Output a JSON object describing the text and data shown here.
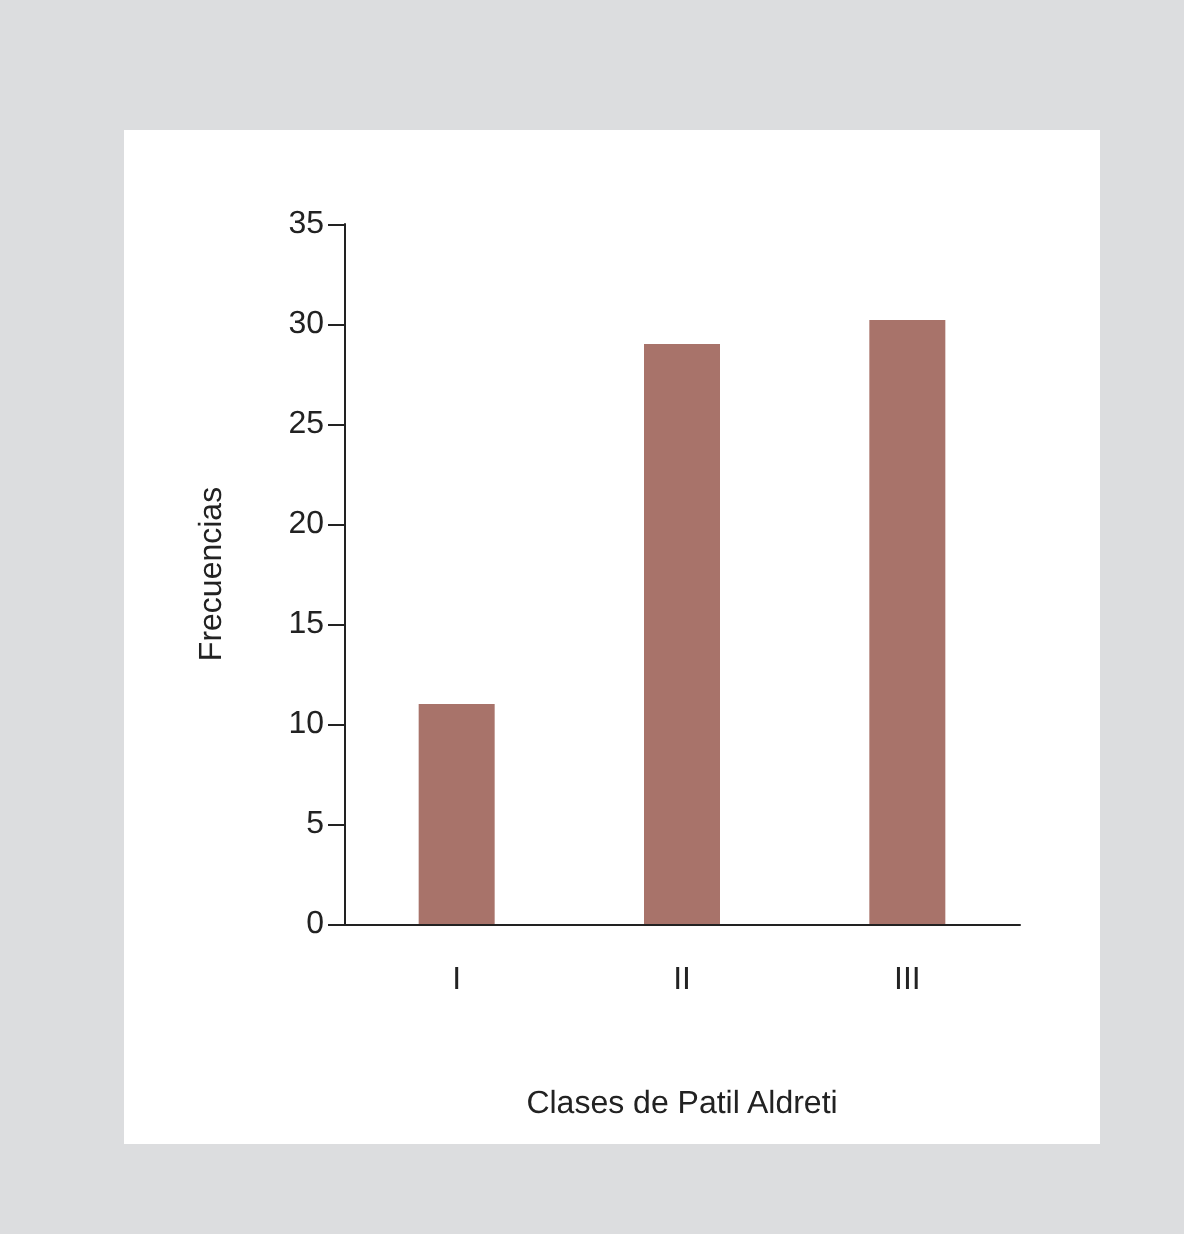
{
  "chart_data": {
    "type": "bar",
    "xlabel": "Clases de Patil Aldreti",
    "ylabel": "Frecuencias",
    "categories": [
      "I",
      "II",
      "III"
    ],
    "values": [
      11,
      29,
      30.2
    ],
    "color": "#a8736a",
    "ylim": [
      0,
      35
    ],
    "yticks": [
      0,
      5,
      10,
      15,
      20,
      25,
      30,
      35
    ],
    "grid": false
  }
}
